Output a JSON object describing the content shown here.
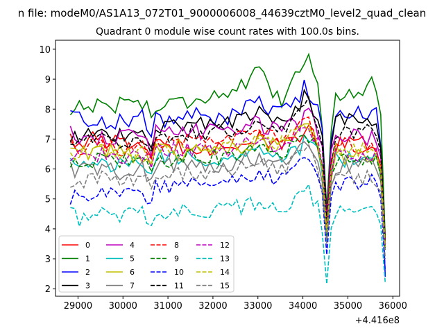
{
  "figure": {
    "suptitle": "n file: modeM0/AS1A13_072T01_9000006008_44639cztM0_level2_quad_clean",
    "title": "Quadrant 0 module wise count rates with 100.0s bins.",
    "offset_label": "+4.416e8"
  },
  "chart_data": {
    "type": "line",
    "title": "Quadrant 0 module wise count rates with 100.0s bins.",
    "xlabel": "",
    "ylabel": "",
    "x_offset": "+4.416e8",
    "xlim": [
      28500,
      36150
    ],
    "ylim": [
      1.75,
      10.3
    ],
    "x_ticks": [
      29000,
      30000,
      31000,
      32000,
      33000,
      34000,
      35000,
      36000
    ],
    "y_ticks": [
      2,
      3,
      4,
      5,
      6,
      7,
      8,
      9,
      10
    ],
    "grid": false,
    "legend_position": "lower-left",
    "legend_columns": 4,
    "x_anchors": [
      28830,
      29000,
      29500,
      30000,
      30500,
      30600,
      30700,
      31000,
      31500,
      32000,
      32500,
      33000,
      33500,
      34000,
      34100,
      34150,
      34400,
      34500,
      34550,
      34650,
      34800,
      35000,
      35500,
      35700,
      35830
    ],
    "series": [
      {
        "name": "0",
        "color": "#ff0000",
        "dash": "solid",
        "values": [
          7.0,
          6.9,
          7.0,
          6.8,
          6.9,
          6.2,
          6.8,
          6.7,
          6.8,
          6.7,
          6.8,
          7.0,
          6.7,
          7.2,
          8.0,
          7.4,
          6.6,
          4.8,
          3.4,
          6.7,
          6.8,
          6.8,
          6.9,
          6.6,
          3.4
        ],
        "noise": 0.28
      },
      {
        "name": "1",
        "color": "#008000",
        "dash": "solid",
        "values": [
          7.8,
          8.2,
          8.1,
          8.2,
          8.3,
          7.6,
          8.0,
          8.2,
          8.3,
          8.5,
          8.6,
          9.2,
          8.2,
          9.7,
          10.0,
          9.6,
          8.2,
          6.3,
          3.6,
          8.4,
          8.4,
          8.6,
          8.8,
          8.8,
          3.7
        ],
        "noise": 0.3
      },
      {
        "name": "2",
        "color": "#0000ff",
        "dash": "solid",
        "values": [
          7.9,
          7.7,
          7.6,
          7.6,
          7.8,
          6.8,
          7.7,
          7.6,
          7.8,
          7.7,
          7.8,
          8.2,
          7.8,
          8.6,
          8.9,
          8.4,
          7.9,
          5.2,
          3.5,
          7.9,
          7.9,
          7.9,
          7.9,
          7.8,
          2.4
        ],
        "noise": 0.3
      },
      {
        "name": "3",
        "color": "#000000",
        "dash": "solid",
        "values": [
          6.8,
          7.1,
          7.2,
          7.1,
          7.2,
          6.4,
          7.4,
          7.4,
          7.6,
          7.5,
          7.6,
          7.9,
          7.5,
          8.3,
          8.6,
          8.2,
          7.5,
          5.7,
          3.6,
          7.5,
          7.6,
          7.7,
          7.6,
          7.4,
          3.5
        ],
        "noise": 0.28
      },
      {
        "name": "4",
        "color": "#bf00bf",
        "dash": "solid",
        "values": [
          7.3,
          7.0,
          7.1,
          7.0,
          7.1,
          6.0,
          7.3,
          7.2,
          7.3,
          7.2,
          7.4,
          7.5,
          7.3,
          7.6,
          7.9,
          7.7,
          7.2,
          5.5,
          3.6,
          7.2,
          7.2,
          7.1,
          7.0,
          7.0,
          3.5
        ],
        "noise": 0.3
      },
      {
        "name": "5",
        "color": "#00bfbf",
        "dash": "solid",
        "values": [
          6.2,
          6.1,
          6.2,
          6.1,
          6.2,
          5.6,
          6.4,
          6.3,
          6.4,
          6.3,
          6.4,
          6.6,
          6.4,
          6.8,
          7.2,
          6.9,
          6.4,
          4.5,
          3.0,
          6.3,
          6.3,
          6.3,
          6.3,
          6.2,
          3.3
        ],
        "noise": 0.28
      },
      {
        "name": "6",
        "color": "#bfbf00",
        "dash": "solid",
        "values": [
          6.5,
          6.5,
          6.6,
          6.5,
          6.4,
          5.9,
          6.7,
          6.5,
          6.6,
          6.6,
          6.7,
          7.0,
          6.7,
          7.2,
          7.6,
          7.2,
          6.6,
          4.7,
          3.2,
          6.5,
          6.5,
          6.4,
          6.4,
          6.3,
          3.4
        ],
        "noise": 0.28
      },
      {
        "name": "7",
        "color": "#808080",
        "dash": "solid",
        "values": [
          6.0,
          5.9,
          6.0,
          5.9,
          6.0,
          5.5,
          6.1,
          6.1,
          6.2,
          6.1,
          6.2,
          6.4,
          6.2,
          6.6,
          7.1,
          6.8,
          6.2,
          4.6,
          3.2,
          6.1,
          6.1,
          6.1,
          6.1,
          6.0,
          3.3
        ],
        "noise": 0.28
      },
      {
        "name": "8",
        "color": "#ff0000",
        "dash": "dashed",
        "values": [
          6.9,
          6.7,
          6.8,
          6.7,
          6.8,
          6.1,
          6.9,
          6.8,
          6.9,
          6.8,
          7.0,
          7.2,
          6.9,
          7.4,
          7.9,
          7.5,
          6.9,
          5.0,
          3.4,
          6.8,
          6.8,
          6.8,
          6.8,
          6.7,
          3.5
        ],
        "noise": 0.28
      },
      {
        "name": "9",
        "color": "#008000",
        "dash": "dashed",
        "values": [
          6.3,
          6.2,
          6.3,
          6.3,
          6.3,
          5.7,
          6.4,
          6.3,
          6.5,
          6.4,
          6.5,
          6.7,
          6.5,
          6.9,
          7.3,
          7.0,
          6.4,
          4.6,
          3.1,
          6.3,
          6.3,
          6.3,
          6.3,
          6.2,
          3.3
        ],
        "noise": 0.28
      },
      {
        "name": "10",
        "color": "#0000ff",
        "dash": "dashed",
        "values": [
          5.0,
          5.1,
          5.2,
          5.3,
          5.2,
          4.6,
          5.5,
          5.4,
          5.5,
          5.5,
          5.6,
          5.9,
          5.6,
          6.2,
          6.5,
          6.2,
          5.6,
          3.8,
          2.7,
          5.4,
          5.5,
          5.5,
          5.6,
          5.5,
          2.6
        ],
        "noise": 0.25
      },
      {
        "name": "11",
        "color": "#000000",
        "dash": "dashed",
        "values": [
          7.0,
          6.9,
          7.0,
          6.9,
          7.0,
          6.3,
          7.2,
          7.1,
          7.2,
          7.2,
          7.3,
          7.5,
          7.3,
          7.9,
          8.4,
          8.0,
          7.3,
          5.3,
          3.5,
          7.1,
          7.2,
          7.3,
          7.3,
          7.2,
          3.5
        ],
        "noise": 0.28
      },
      {
        "name": "12",
        "color": "#bf00bf",
        "dash": "dashed",
        "values": [
          6.4,
          6.4,
          6.5,
          6.4,
          6.5,
          5.8,
          6.6,
          6.6,
          6.7,
          6.6,
          6.7,
          6.9,
          6.7,
          7.2,
          7.6,
          7.3,
          6.6,
          4.8,
          3.3,
          6.5,
          6.5,
          6.5,
          6.4,
          6.4,
          3.4
        ],
        "noise": 0.28
      },
      {
        "name": "13",
        "color": "#00bfbf",
        "dash": "dashed",
        "values": [
          4.8,
          4.3,
          4.5,
          4.4,
          4.5,
          3.9,
          4.6,
          4.6,
          4.7,
          4.6,
          4.7,
          4.9,
          4.7,
          5.1,
          5.5,
          5.2,
          4.7,
          2.1,
          2.2,
          4.5,
          4.5,
          4.5,
          4.5,
          4.4,
          2.2
        ],
        "noise": 0.28
      },
      {
        "name": "14",
        "color": "#bfbf00",
        "dash": "dashed",
        "values": [
          6.6,
          6.5,
          6.6,
          6.5,
          6.6,
          5.9,
          6.7,
          6.7,
          6.8,
          6.7,
          6.8,
          7.0,
          6.8,
          7.3,
          7.7,
          7.3,
          6.7,
          4.8,
          3.3,
          6.6,
          6.6,
          6.6,
          6.6,
          6.5,
          3.4
        ],
        "noise": 0.28
      },
      {
        "name": "15",
        "color": "#808080",
        "dash": "dashed",
        "values": [
          5.4,
          5.6,
          5.7,
          5.6,
          5.7,
          5.1,
          5.9,
          5.8,
          5.9,
          5.9,
          6.0,
          6.2,
          6.0,
          6.5,
          6.9,
          6.6,
          6.0,
          4.3,
          3.0,
          5.8,
          5.8,
          5.7,
          5.7,
          5.6,
          3.0
        ],
        "noise": 0.28
      }
    ]
  }
}
